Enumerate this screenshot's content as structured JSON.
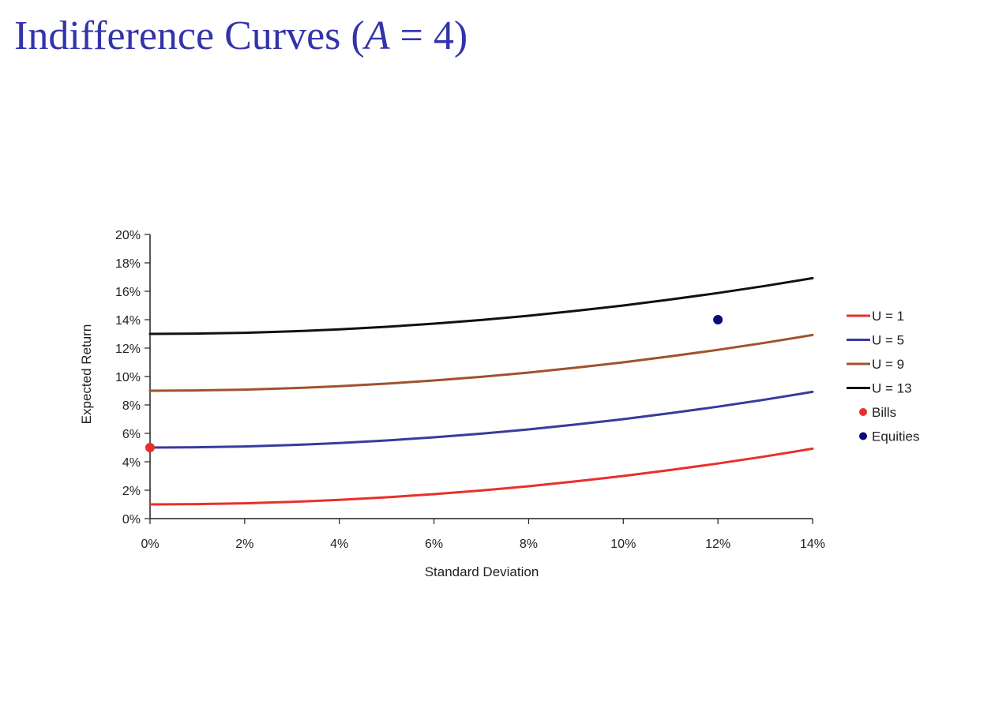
{
  "slide": {
    "title_prefix": "Indifference Curves (",
    "title_var": "A",
    "title_suffix": " = 4)"
  },
  "chart_data": {
    "type": "line",
    "xlabel": "Standard Deviation",
    "ylabel": "Expected Return",
    "xlim": [
      0,
      14
    ],
    "ylim": [
      0,
      20
    ],
    "x_ticks": [
      0,
      2,
      4,
      6,
      8,
      10,
      12,
      14
    ],
    "y_ticks": [
      0,
      2,
      4,
      6,
      8,
      10,
      12,
      14,
      16,
      18,
      20
    ],
    "x_tick_labels": [
      "0%",
      "2%",
      "4%",
      "6%",
      "8%",
      "10%",
      "12%",
      "14%"
    ],
    "y_tick_labels": [
      "0%",
      "2%",
      "4%",
      "6%",
      "8%",
      "10%",
      "12%",
      "14%",
      "16%",
      "18%",
      "20%"
    ],
    "x": [
      0,
      1,
      2,
      3,
      4,
      5,
      6,
      7,
      8,
      9,
      10,
      11,
      12,
      13,
      14
    ],
    "series": [
      {
        "name": "U = 1",
        "color": "#e8302a",
        "values": [
          1.0,
          1.02,
          1.08,
          1.18,
          1.32,
          1.5,
          1.72,
          1.98,
          2.28,
          2.62,
          3.0,
          3.42,
          3.88,
          4.38,
          4.92
        ]
      },
      {
        "name": "U = 5",
        "color": "#3a3a9e",
        "values": [
          5.0,
          5.02,
          5.08,
          5.18,
          5.32,
          5.5,
          5.72,
          5.98,
          6.28,
          6.62,
          7.0,
          7.42,
          7.88,
          8.38,
          8.92
        ]
      },
      {
        "name": "U = 9",
        "color": "#a0522d",
        "values": [
          9.0,
          9.02,
          9.08,
          9.18,
          9.32,
          9.5,
          9.72,
          9.98,
          10.28,
          10.62,
          11.0,
          11.42,
          11.88,
          12.38,
          12.92
        ]
      },
      {
        "name": "U = 13",
        "color": "#111111",
        "values": [
          13.0,
          13.02,
          13.08,
          13.18,
          13.32,
          13.5,
          13.72,
          13.98,
          14.28,
          14.62,
          15.0,
          15.42,
          15.88,
          16.38,
          16.92
        ]
      }
    ],
    "points": [
      {
        "name": "Bills",
        "color": "#e8302a",
        "x": 0,
        "y": 5
      },
      {
        "name": "Equities",
        "color": "#0a0a7a",
        "x": 12,
        "y": 14
      }
    ],
    "legend_position": "right",
    "grid": false
  }
}
